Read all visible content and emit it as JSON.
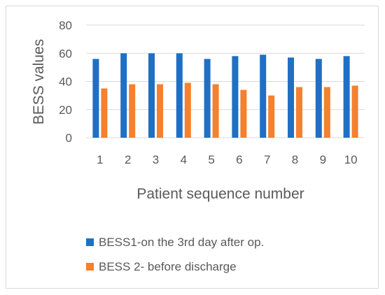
{
  "chart_data": {
    "type": "bar",
    "categories": [
      "1",
      "2",
      "3",
      "4",
      "5",
      "6",
      "7",
      "8",
      "9",
      "10"
    ],
    "series": [
      {
        "name": "BESS1-on the 3rd day after op.",
        "color": "#1f6fc5",
        "values": [
          56,
          60,
          60,
          60,
          56,
          58,
          59,
          57,
          56,
          58
        ]
      },
      {
        "name": "BESS 2- before discharge",
        "color": "#f5802d",
        "values": [
          35,
          38,
          38,
          39,
          38,
          34,
          30,
          36,
          36,
          37
        ]
      }
    ],
    "xlabel": "Patient sequence number",
    "ylabel": "BESS values",
    "ylim": [
      0,
      80
    ],
    "yticks": [
      0,
      20,
      40,
      60,
      80
    ],
    "grid": true,
    "legend_position": "bottom"
  }
}
